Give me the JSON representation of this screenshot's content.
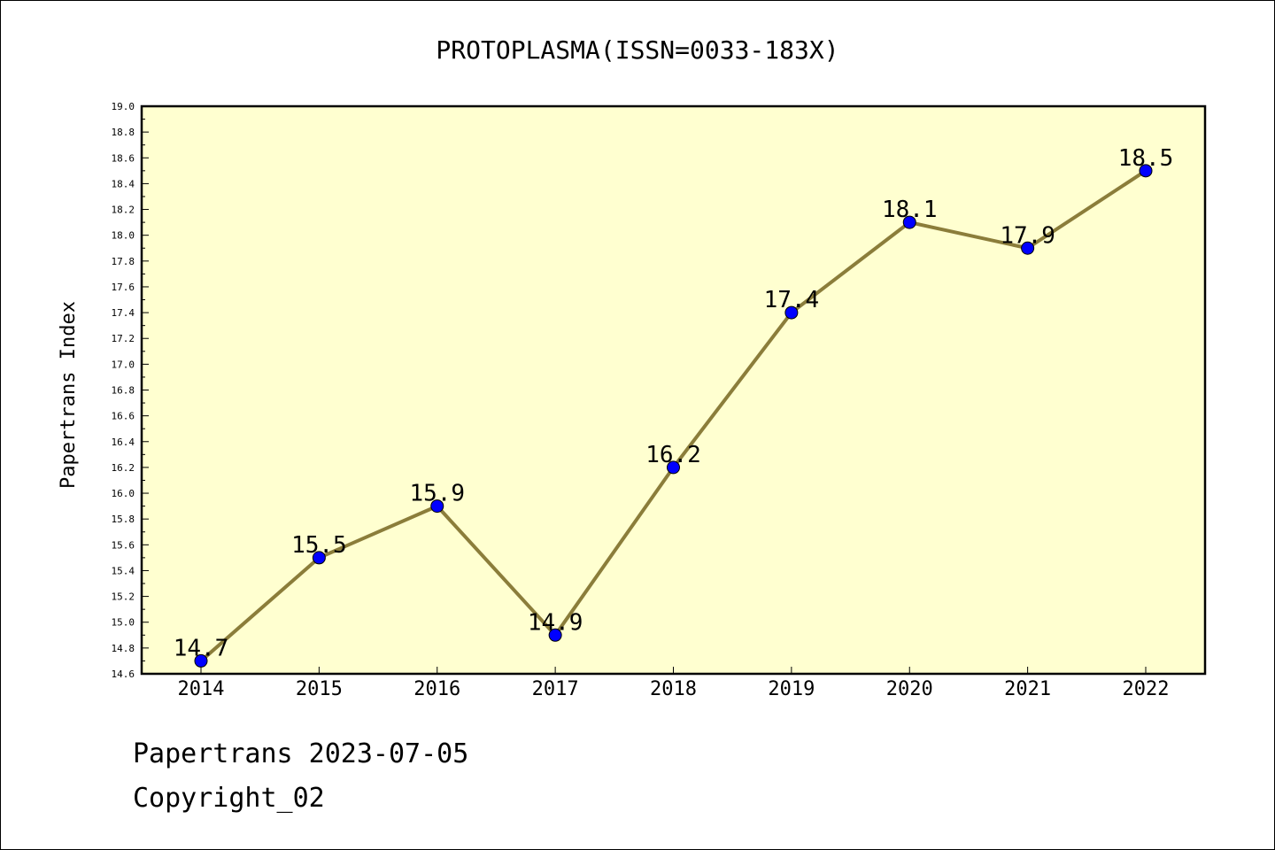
{
  "chart_data": {
    "type": "line",
    "title": "PROTOPLASMA(ISSN=0033-183X)",
    "xlabel": "",
    "ylabel": "Papertrans Index",
    "categories": [
      "2014",
      "2015",
      "2016",
      "2017",
      "2018",
      "2019",
      "2020",
      "2021",
      "2022"
    ],
    "values": [
      14.7,
      15.5,
      15.9,
      14.9,
      16.2,
      17.4,
      18.1,
      17.9,
      18.5
    ],
    "data_labels": [
      "14.7",
      "15.5",
      "15.9",
      "14.9",
      "16.2",
      "17.4",
      "18.1",
      "17.9",
      "18.5"
    ],
    "ylim": [
      14.6,
      19.0
    ],
    "yticks": [
      "14.6",
      "14.8",
      "15.0",
      "15.2",
      "15.4",
      "15.6",
      "15.8",
      "16.0",
      "16.2",
      "16.4",
      "16.6",
      "16.8",
      "17.0",
      "17.2",
      "17.4",
      "17.6",
      "17.8",
      "18.0",
      "18.2",
      "18.4",
      "18.6",
      "18.8",
      "19.0"
    ],
    "grid": false,
    "colors": {
      "plot_background": "#ffffd0",
      "line": "#8b7d3a",
      "marker": "#0000ff"
    }
  },
  "footer": {
    "date_line": "Papertrans 2023-07-05",
    "copyright": "Copyright_02"
  }
}
